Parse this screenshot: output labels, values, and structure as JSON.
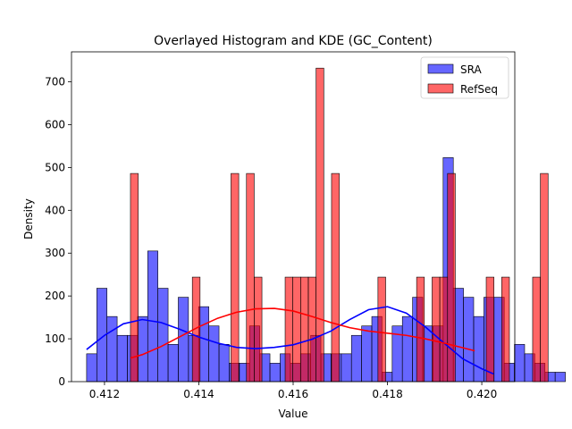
{
  "chart_data": {
    "type": "bar",
    "title": "Overlayed Histogram and KDE (GC_Content)",
    "xlabel": "Value",
    "ylabel": "Density",
    "xlim": [
      0.4113,
      0.4207
    ],
    "ylim": [
      0,
      770
    ],
    "xticks": [
      0.412,
      0.414,
      0.416,
      0.418,
      0.42
    ],
    "xtick_labels": [
      "0.412",
      "0.414",
      "0.416",
      "0.418",
      "0.420"
    ],
    "yticks": [
      0,
      100,
      200,
      300,
      400,
      500,
      600,
      700
    ],
    "ytick_labels": [
      "0",
      "100",
      "200",
      "300",
      "400",
      "500",
      "600",
      "700"
    ],
    "legend_position": "top-right",
    "legend": [
      {
        "label": "SRA",
        "color": "#0000ff"
      },
      {
        "label": "RefSeq",
        "color": "#ff0000"
      }
    ],
    "series": [
      {
        "name": "SRA",
        "color": "#0000ff",
        "bin_start": 0.41162,
        "bin_width": 0.000216,
        "values": [
          65,
          218,
          152,
          108,
          108,
          152,
          305,
          218,
          87,
          197,
          108,
          175,
          130,
          87,
          43,
          43,
          130,
          65,
          43,
          65,
          43,
          65,
          108,
          65,
          65,
          65,
          108,
          130,
          152,
          22,
          130,
          152,
          197,
          130,
          130,
          523,
          218,
          197,
          152,
          197,
          197,
          43,
          87,
          65,
          43,
          22,
          22
        ],
        "kde": {
          "x": [
            0.41162,
            0.412,
            0.4124,
            0.4128,
            0.4132,
            0.4136,
            0.414,
            0.4144,
            0.4148,
            0.4152,
            0.4156,
            0.416,
            0.4164,
            0.4168,
            0.4172,
            0.4176,
            0.418,
            0.4184,
            0.4188,
            0.4192,
            0.4196,
            0.42,
            0.42025
          ],
          "y": [
            75,
            108,
            135,
            145,
            138,
            122,
            104,
            90,
            80,
            77,
            80,
            86,
            99,
            118,
            145,
            168,
            175,
            160,
            128,
            90,
            53,
            30,
            18
          ]
        }
      },
      {
        "name": "RefSeq",
        "color": "#ff0000",
        "bin_start": 0.41255,
        "bin_width": 0.000164,
        "values": [
          486,
          0,
          0,
          0,
          0,
          0,
          0,
          0,
          244,
          0,
          0,
          0,
          0,
          486,
          0,
          486,
          244,
          0,
          0,
          0,
          244,
          244,
          244,
          244,
          732,
          0,
          486,
          0,
          0,
          0,
          0,
          0,
          244,
          0,
          0,
          0,
          0,
          244,
          0,
          244,
          244,
          486,
          0,
          0,
          0,
          0,
          244,
          0,
          244,
          0,
          0,
          0,
          244,
          486
        ],
        "kde": {
          "x": [
            0.41255,
            0.4128,
            0.4132,
            0.4136,
            0.414,
            0.4144,
            0.4148,
            0.4152,
            0.4156,
            0.416,
            0.4164,
            0.4168,
            0.4172,
            0.4176,
            0.418,
            0.4184,
            0.4188,
            0.4192,
            0.4196,
            0.41985
          ],
          "y": [
            55,
            63,
            82,
            105,
            128,
            148,
            162,
            170,
            171,
            165,
            152,
            138,
            126,
            118,
            113,
            108,
            100,
            90,
            79,
            72
          ]
        }
      }
    ]
  }
}
